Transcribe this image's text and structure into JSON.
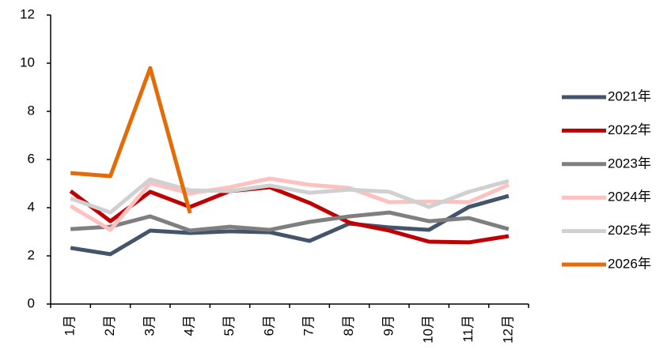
{
  "chart_data": {
    "type": "line",
    "categories": [
      "1月",
      "2月",
      "3月",
      "4月",
      "5月",
      "6月",
      "7月",
      "8月",
      "9月",
      "10月",
      "11月",
      "12月"
    ],
    "series": [
      {
        "name": "2021年",
        "color": "#44546a",
        "values": [
          2.33,
          2.07,
          3.05,
          2.95,
          3.02,
          2.98,
          2.62,
          3.34,
          3.18,
          3.08,
          4.03,
          4.49
        ]
      },
      {
        "name": "2022年",
        "color": "#c00000",
        "values": [
          4.69,
          3.44,
          4.66,
          4.03,
          4.69,
          4.85,
          4.2,
          3.38,
          3.05,
          2.59,
          2.56,
          2.82
        ]
      },
      {
        "name": "2023年",
        "color": "#7f7f7f",
        "values": [
          3.11,
          3.21,
          3.64,
          3.05,
          3.21,
          3.08,
          3.41,
          3.64,
          3.8,
          3.44,
          3.57,
          3.11
        ]
      },
      {
        "name": "2024年",
        "color": "#ffc0c0",
        "values": [
          4.07,
          3.08,
          5.02,
          4.59,
          4.85,
          5.21,
          4.95,
          4.82,
          4.23,
          4.26,
          4.23,
          4.95
        ]
      },
      {
        "name": "2025年",
        "color": "#d0d0d0",
        "values": [
          4.39,
          3.8,
          5.18,
          4.72,
          4.69,
          4.92,
          4.62,
          4.75,
          4.66,
          4.03,
          4.66,
          5.11
        ]
      },
      {
        "name": "2026年",
        "color": "#e36c09",
        "values": [
          5.44,
          5.31,
          9.8,
          3.77,
          null,
          null,
          null,
          null,
          null,
          null,
          null,
          null
        ]
      }
    ],
    "ylim": [
      0,
      12
    ],
    "yticks": [
      0,
      2,
      4,
      6,
      8,
      10,
      12
    ],
    "legend": "right"
  }
}
